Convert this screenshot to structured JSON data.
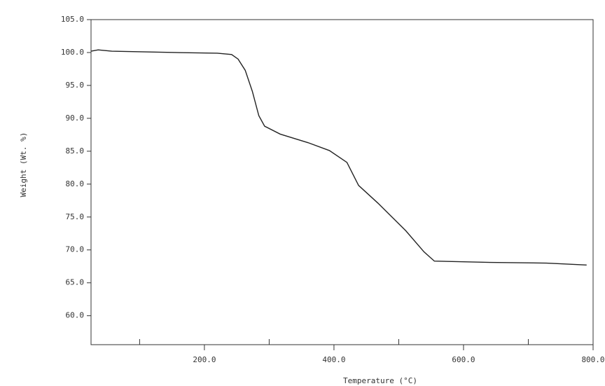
{
  "chart_data": {
    "type": "line",
    "x_label": "Temperature (°C)",
    "y_label": "Weight (Wt. %)",
    "x": [
      25,
      36,
      57,
      155,
      220,
      242,
      252,
      263,
      274,
      284,
      293,
      317,
      360,
      393,
      420,
      438,
      468,
      511,
      539,
      555,
      641,
      728,
      790
    ],
    "series": [
      {
        "color": "#222222",
        "values": [
          100.2,
          100.4,
          100.2,
          100.0,
          99.9,
          99.7,
          99.0,
          97.3,
          94.1,
          90.4,
          88.8,
          87.6,
          86.3,
          85.1,
          83.3,
          79.8,
          77.1,
          72.9,
          69.7,
          68.3,
          68.1,
          68.0,
          67.7
        ]
      }
    ],
    "xlim": [
      25,
      800
    ],
    "ylim": [
      55.6,
      105
    ],
    "xticks": [
      {
        "value": 200,
        "label": "200.0"
      },
      {
        "value": 400,
        "label": "400.0"
      },
      {
        "value": 600,
        "label": "600.0"
      },
      {
        "value": 800,
        "label": "800.0"
      }
    ],
    "xminorticks": [
      100,
      300,
      500,
      700
    ],
    "yticks": [
      {
        "value": 60,
        "label": "60.0"
      },
      {
        "value": 65,
        "label": "65.0"
      },
      {
        "value": 70,
        "label": "70.0"
      },
      {
        "value": 75,
        "label": "75.0"
      },
      {
        "value": 80,
        "label": "80.0"
      },
      {
        "value": 85,
        "label": "85.0"
      },
      {
        "value": 90,
        "label": "90.0"
      },
      {
        "value": 95,
        "label": "95.0"
      },
      {
        "value": 100,
        "label": "100.0"
      },
      {
        "value": 105,
        "label": "105.0"
      }
    ]
  }
}
